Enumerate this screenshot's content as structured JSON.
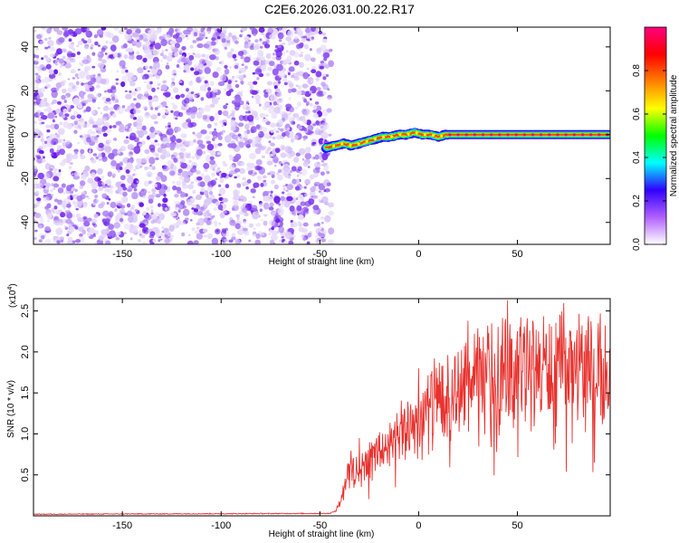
{
  "title": "C2E6.2026.031.00.22.R17",
  "chart_data": [
    {
      "type": "heatmap",
      "xlabel": "Height of straight line (km)",
      "ylabel": "Frequency (Hz)",
      "xlim": [
        -195,
        97
      ],
      "ylim": [
        -50,
        49
      ],
      "x_ticks": [
        -150,
        -100,
        -50,
        0,
        50
      ],
      "y_ticks": [
        -40,
        -20,
        0,
        20,
        40
      ],
      "noise_region_x": [
        -195,
        -47
      ],
      "signal_track": {
        "x": [
          -47,
          -42,
          -38,
          -34,
          -30,
          -26,
          -22,
          -18,
          -14,
          -10,
          -6,
          -2,
          2,
          6,
          10,
          14,
          20,
          30,
          40,
          50,
          60,
          70,
          80,
          90,
          97
        ],
        "y": [
          -6,
          -5,
          -4,
          -5,
          -4,
          -3,
          -2,
          -1,
          -1,
          0,
          0,
          1,
          0,
          0,
          -1,
          0,
          0,
          0,
          0,
          0,
          0,
          0,
          0,
          0,
          0
        ]
      },
      "grid": false,
      "colorbar": {
        "label": "Normalized spectral amplitude",
        "range": [
          0.0,
          1.0
        ],
        "ticks": [
          "0.0",
          "0.2",
          "0.4",
          "0.6",
          "0.8"
        ],
        "colors": [
          "#ffffff",
          "#b060ff",
          "#3000ff",
          "#00ffff",
          "#00ff00",
          "#ffff00",
          "#ff8000",
          "#ff0000",
          "#ff0080"
        ]
      }
    },
    {
      "type": "line",
      "xlabel": "Height of straight line (km)",
      "ylabel": "SNR (10 * v/v)",
      "y_multiplier": "(x10",
      "y_multiplier_exp": "4",
      "y_multiplier_close": ")",
      "xlim": [
        -195,
        97
      ],
      "ylim": [
        0,
        2.65
      ],
      "x_ticks": [
        -150,
        -100,
        -50,
        0,
        50
      ],
      "y_ticks": [
        "0.5",
        "1.0",
        "1.5",
        "2.0",
        "2.5"
      ],
      "y_tick_values": [
        0.5,
        1.0,
        1.5,
        2.0,
        2.5
      ],
      "line_color": "#e8322e",
      "series_envelope": {
        "x": [
          -195,
          -45,
          -42,
          -40,
          -38,
          -35,
          -30,
          -25,
          -20,
          -15,
          -10,
          -5,
          0,
          5,
          10,
          15,
          20,
          25,
          30,
          35,
          40,
          45,
          50,
          55,
          60,
          65,
          70,
          75,
          80,
          85,
          90,
          97
        ],
        "y": [
          0.02,
          0.03,
          0.06,
          0.15,
          0.35,
          0.55,
          0.62,
          0.68,
          0.78,
          0.85,
          0.95,
          1.1,
          1.2,
          1.3,
          1.35,
          1.45,
          1.5,
          1.6,
          1.65,
          1.7,
          1.72,
          1.78,
          1.8,
          1.8,
          1.78,
          1.8,
          1.8,
          1.82,
          1.8,
          1.8,
          1.78,
          1.8
        ]
      },
      "peaks": [
        {
          "x": -30,
          "y": 0.95
        },
        {
          "x": 0,
          "y": 1.8
        },
        {
          "x": 8,
          "y": 1.92
        },
        {
          "x": 20,
          "y": 2.0
        },
        {
          "x": 25,
          "y": 2.38
        },
        {
          "x": 37,
          "y": 2.35
        },
        {
          "x": 45,
          "y": 2.63
        },
        {
          "x": 58,
          "y": 2.35
        },
        {
          "x": 77,
          "y": 2.25
        },
        {
          "x": 92,
          "y": 2.47
        }
      ]
    }
  ]
}
